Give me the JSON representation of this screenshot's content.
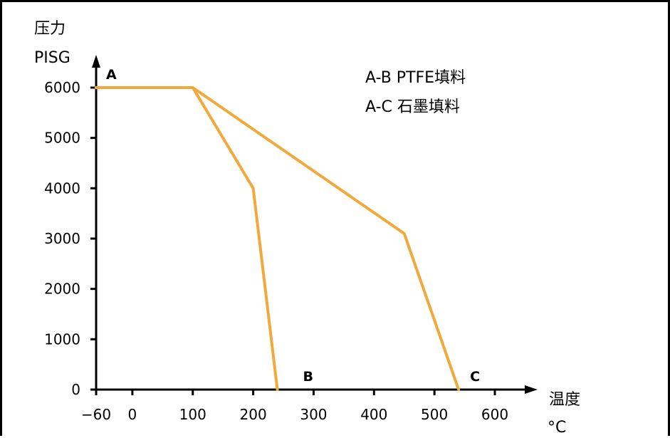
{
  "chart_data": {
    "type": "line",
    "ylabel_lines": [
      "压力",
      "PISG"
    ],
    "xlabel_lines": [
      "温度",
      "°C"
    ],
    "xlim": [
      -60,
      640
    ],
    "ylim": [
      0,
      6000
    ],
    "x_ticks": [
      -60,
      0,
      100,
      200,
      300,
      400,
      500,
      600
    ],
    "x_tick_labels": [
      "−60",
      "0",
      "100",
      "200",
      "300",
      "400",
      "500",
      "600"
    ],
    "y_ticks": [
      0,
      1000,
      2000,
      3000,
      4000,
      5000,
      6000
    ],
    "y_tick_labels": [
      "0",
      "1000",
      "2000",
      "3000",
      "4000",
      "5000",
      "6000"
    ],
    "grid": false,
    "line_color": "#f2a93b",
    "axis_color": "#000000",
    "series": [
      {
        "name": "A-B PTFE填料",
        "x": [
          -60,
          100,
          200,
          240
        ],
        "y": [
          6000,
          6000,
          4000,
          0
        ]
      },
      {
        "name": "A-C 石墨填料",
        "x": [
          -60,
          100,
          450,
          540
        ],
        "y": [
          6000,
          6000,
          3100,
          0
        ]
      }
    ],
    "legend_lines": [
      "A-B PTFE填料",
      "A-C 石墨填料"
    ],
    "legend_position": "top-right",
    "point_labels": [
      {
        "text": "A",
        "x": -60,
        "y": 6000
      },
      {
        "text": "B",
        "x": 240,
        "y": 0
      },
      {
        "text": "C",
        "x": 540,
        "y": 0
      }
    ]
  }
}
